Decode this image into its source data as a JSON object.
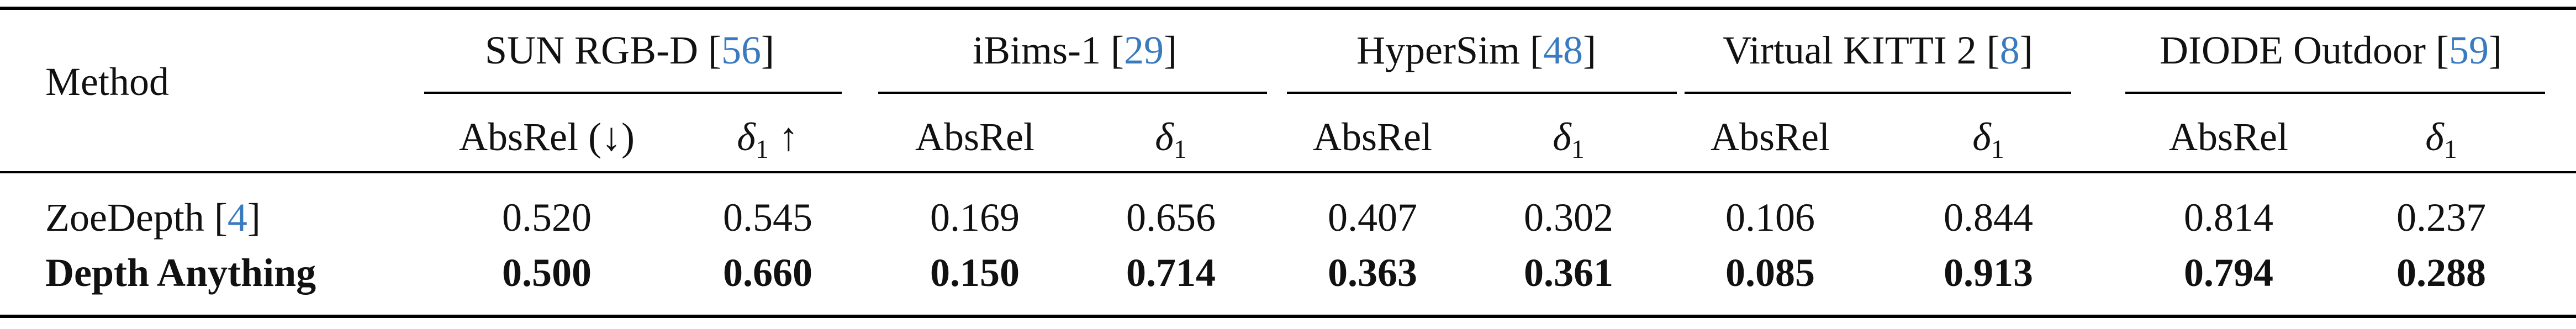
{
  "table": {
    "method_header": "Method",
    "datasets": [
      {
        "name": "SUN RGB-D",
        "ref": "56",
        "metrics": [
          "AbsRel (↓)",
          "δ1 ↑"
        ]
      },
      {
        "name": "iBims-1",
        "ref": "29",
        "metrics": [
          "AbsRel",
          "δ1"
        ]
      },
      {
        "name": "HyperSim",
        "ref": "48",
        "metrics": [
          "AbsRel",
          "δ1"
        ]
      },
      {
        "name": "Virtual KITTI 2",
        "ref": "8",
        "metrics": [
          "AbsRel",
          "δ1"
        ]
      },
      {
        "name": "DIODE Outdoor",
        "ref": "59",
        "metrics": [
          "AbsRel",
          "δ1"
        ]
      }
    ],
    "rows": [
      {
        "method": "ZoeDepth",
        "ref": "4",
        "bold": false,
        "values": [
          "0.520",
          "0.545",
          "0.169",
          "0.656",
          "0.407",
          "0.302",
          "0.106",
          "0.844",
          "0.814",
          "0.237"
        ]
      },
      {
        "method": "Depth Anything",
        "ref": "",
        "bold": true,
        "values": [
          "0.500",
          "0.660",
          "0.150",
          "0.714",
          "0.363",
          "0.361",
          "0.085",
          "0.913",
          "0.794",
          "0.288"
        ]
      }
    ]
  },
  "colors": {
    "text": "#111111",
    "reference_link": "#3a7abf",
    "rule": "#000000"
  }
}
